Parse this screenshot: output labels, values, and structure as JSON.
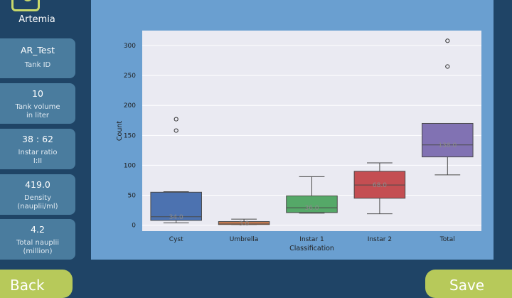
{
  "app": {
    "title": "Artemia"
  },
  "sidebar": {
    "cards": [
      {
        "value": "AR_Test",
        "label_lines": [
          "Tank ID"
        ]
      },
      {
        "value": "10",
        "label_lines": [
          "Tank volume",
          "in liter"
        ]
      },
      {
        "value": "38 : 62",
        "label_lines": [
          "Instar ratio",
          "I:II"
        ]
      },
      {
        "value": "419.0",
        "label_lines": [
          "Density",
          "(nauplii/ml)"
        ]
      },
      {
        "value": "4.2",
        "label_lines": [
          "Total nauplii",
          "(million)"
        ]
      }
    ]
  },
  "footer": {
    "back_label": "Back",
    "save_label": "Save"
  },
  "chart_data": {
    "type": "box",
    "xlabel": "Classification",
    "ylabel": "Count",
    "ylim": [
      -10,
      325
    ],
    "yticks": [
      0,
      50,
      100,
      150,
      200,
      250,
      300
    ],
    "grid": true,
    "categories": [
      "Cyst",
      "Umbrella",
      "Instar 1",
      "Instar 2",
      "Total"
    ],
    "colors": [
      "#4c72b0",
      "#dd8452",
      "#55a868",
      "#c44e52",
      "#8172b3"
    ],
    "boxes": [
      {
        "whislo": 4,
        "q1": 8,
        "med": 14,
        "q3": 55,
        "whishi": 56,
        "fliers": [
          158,
          177
        ],
        "mean_label": "34.0"
      },
      {
        "whislo": 1,
        "q1": 1,
        "med": 3,
        "q3": 6,
        "whishi": 10,
        "fliers": [],
        "mean_label": "3.0"
      },
      {
        "whislo": 20,
        "q1": 21,
        "med": 29,
        "q3": 49,
        "whishi": 81,
        "fliers": [],
        "mean_label": "36.0"
      },
      {
        "whislo": 19,
        "q1": 45,
        "med": 67,
        "q3": 90,
        "whishi": 104,
        "fliers": [],
        "mean_label": "68.0"
      },
      {
        "whislo": 84,
        "q1": 114,
        "med": 134,
        "q3": 170,
        "whishi": 170,
        "fliers": [
          265,
          308
        ],
        "mean_label": "138.0"
      }
    ]
  }
}
